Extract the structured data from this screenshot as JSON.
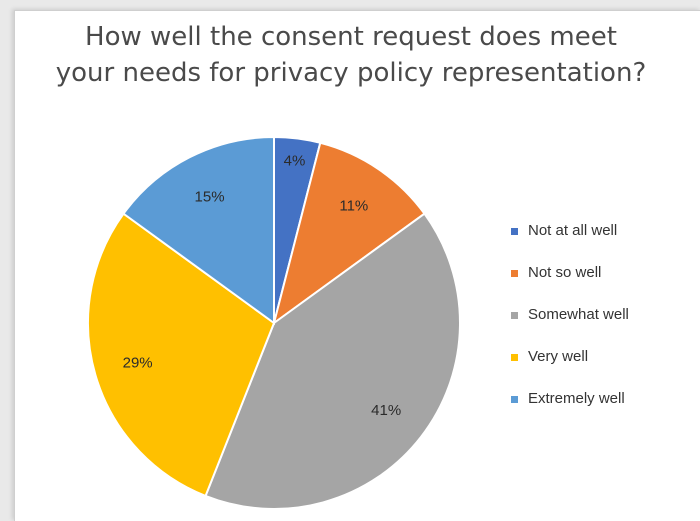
{
  "chart_data": {
    "type": "pie",
    "title_line1": "How well the consent request does meet",
    "title_line2": "your needs for privacy policy representation?",
    "slices": [
      {
        "name": "Not at all well",
        "value": 4,
        "label": "4%",
        "color": "#4472c4"
      },
      {
        "name": "Not so well",
        "value": 11,
        "label": "11%",
        "color": "#ed7d31"
      },
      {
        "name": "Somewhat well",
        "value": 41,
        "label": "41%",
        "color": "#a5a5a5"
      },
      {
        "name": "Very well",
        "value": 29,
        "label": "29%",
        "color": "#ffc000"
      },
      {
        "name": "Extremely well",
        "value": 15,
        "label": "15%",
        "color": "#5b9bd5"
      }
    ],
    "legend_position": "right"
  }
}
